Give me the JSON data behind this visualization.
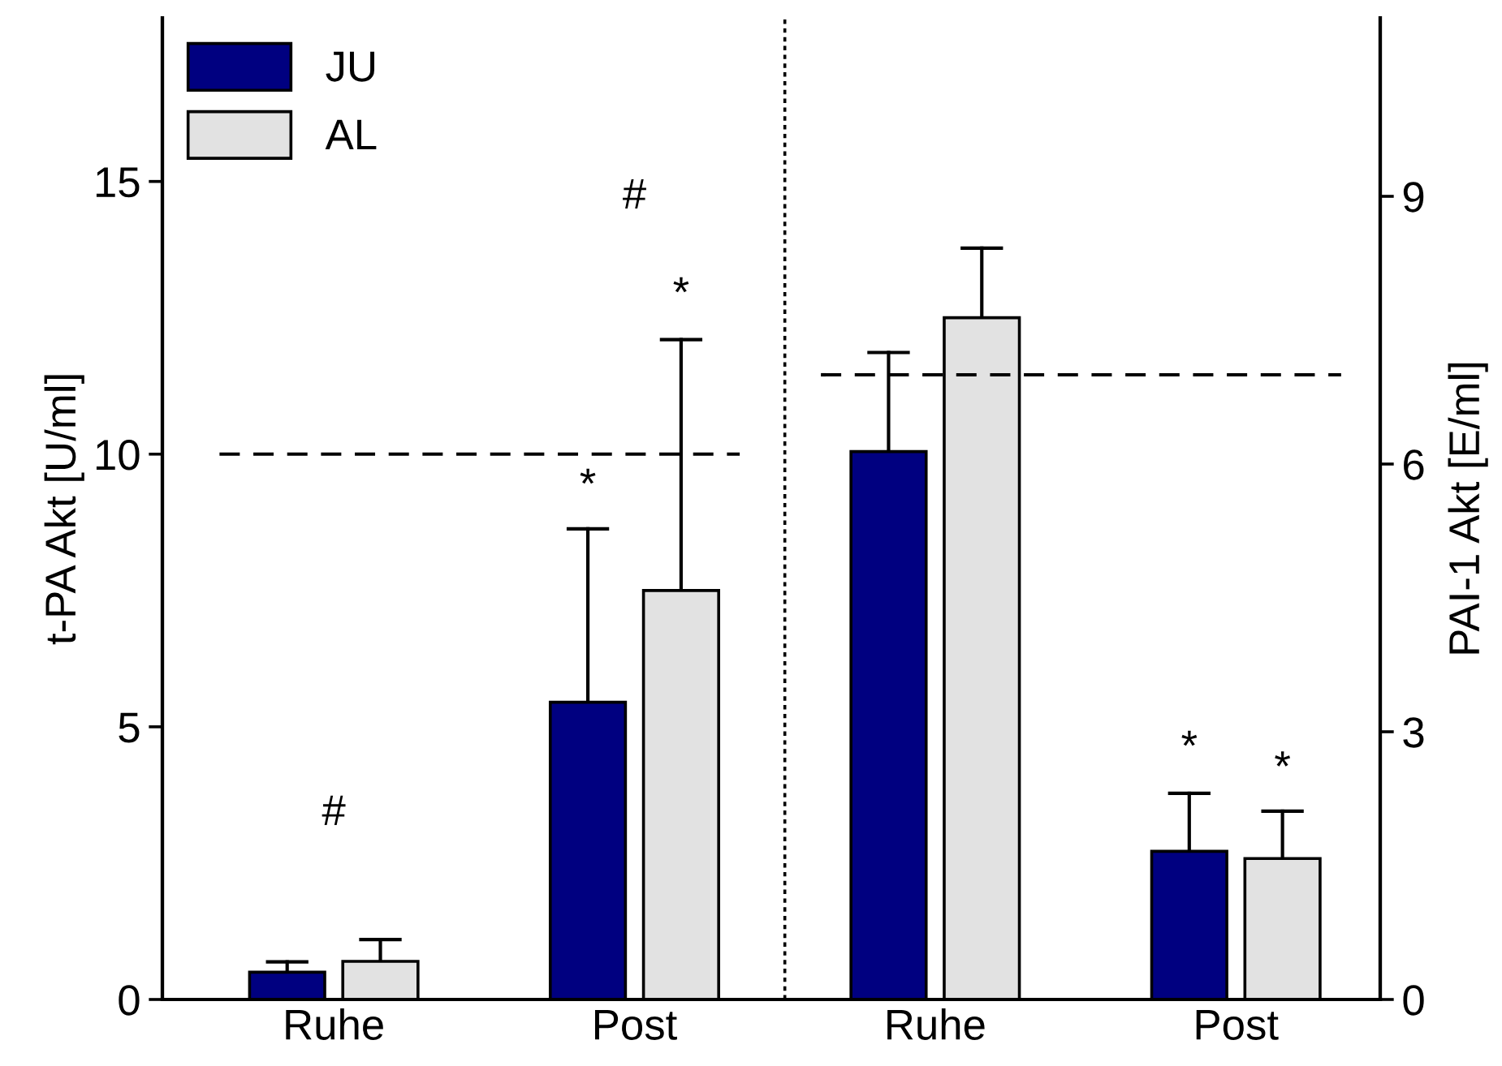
{
  "chart_data": {
    "type": "bar",
    "ylabel": "t-PA Akt [U/ml]",
    "y2label": "PAI-1 Akt [E/ml]",
    "categories": [
      "Ruhe",
      "Post",
      "Ruhe",
      "Post"
    ],
    "series": [
      {
        "name": "JU",
        "color": "#000080",
        "values": [
          0.5,
          5.45,
          null,
          null
        ],
        "errors": [
          [
            0.5,
            0.69
          ],
          [
            5.45,
            8.63
          ],
          null,
          null
        ]
      },
      {
        "name": "AL",
        "color": "#e2e2e2",
        "values": [
          0.7,
          7.5,
          null,
          null
        ],
        "errors": [
          [
            0.7,
            1.1
          ],
          [
            7.5,
            12.1
          ],
          null,
          null
        ]
      },
      {
        "color": "#000080",
        "axis": "y2",
        "values": [
          null,
          null,
          6.14,
          1.66
        ],
        "errors": [
          null,
          null,
          [
            6.14,
            7.25
          ],
          [
            1.66,
            2.31
          ]
        ]
      },
      {
        "color": "#e2e2e2",
        "axis": "y2",
        "values": [
          null,
          null,
          7.64,
          1.58
        ],
        "errors": [
          null,
          null,
          [
            7.64,
            8.42
          ],
          [
            1.58,
            2.11
          ]
        ]
      }
    ],
    "ylim": [
      0,
      18
    ],
    "yticks": [
      0,
      5,
      10,
      15
    ],
    "y2lim": [
      0,
      11
    ],
    "y2ticks": [
      0,
      3,
      6,
      9
    ],
    "ref_lines": [
      {
        "axis": "y",
        "value": 10,
        "line_style": "dashed",
        "color": "#000000"
      },
      {
        "axis": "y2",
        "value": 7,
        "line_style": "dashed",
        "color": "#000000"
      }
    ],
    "annotations": [
      "#",
      "#",
      "*",
      "*",
      "*",
      "*"
    ],
    "legend": "top left",
    "grid": false
  }
}
